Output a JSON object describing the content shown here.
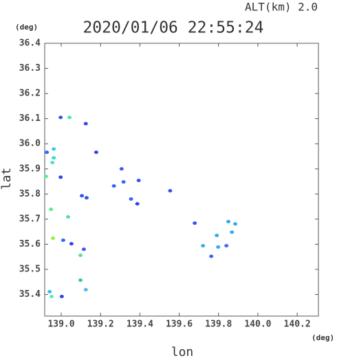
{
  "chart_data": {
    "type": "scatter",
    "title": "2020/01/06 22:55:24",
    "annotation": "ALT(km) 2.0",
    "y_unit": "(deg)",
    "x_unit": "(deg)",
    "x_label": "lon",
    "y_label": "lat",
    "xlim": [
      138.916,
      140.308
    ],
    "ylim": [
      35.314,
      36.4
    ],
    "xticks": [
      {
        "value": 139.0,
        "label": "139.0"
      },
      139.2,
      139.4,
      139.6,
      139.8,
      {
        "value": 140.0,
        "label": "140.0"
      },
      140.2
    ],
    "yticks": [
      36.4,
      36.3,
      36.2,
      36.1,
      {
        "value": 36.0,
        "label": "36.0"
      },
      35.9,
      35.8,
      35.7,
      35.6,
      35.5,
      35.4
    ],
    "x": [
      138.997,
      139.042,
      139.125,
      138.927,
      138.962,
      138.962,
      138.955,
      138.997,
      138.923,
      138.948,
      139.035,
      138.958,
      139.01,
      139.052,
      139.115,
      139.098,
      139.098,
      139.125,
      138.941,
      138.951,
      139.003,
      139.178,
      139.307,
      139.317,
      139.394,
      139.268,
      139.105,
      139.129,
      139.355,
      139.554,
      139.387,
      139.679,
      139.791,
      139.85,
      139.885,
      139.798,
      139.84,
      139.763,
      139.868,
      139.721
    ],
    "values": [
      36.105,
      36.105,
      36.08,
      35.966,
      35.979,
      35.944,
      35.925,
      35.867,
      35.87,
      35.739,
      35.709,
      35.624,
      35.616,
      35.602,
      35.58,
      35.556,
      35.457,
      35.419,
      35.411,
      35.392,
      35.392,
      35.966,
      35.9,
      35.848,
      35.854,
      35.832,
      35.793,
      35.785,
      35.78,
      35.813,
      35.761,
      35.684,
      35.635,
      35.69,
      35.681,
      35.589,
      35.594,
      35.552,
      35.648,
      35.594
    ],
    "colors": [
      "#3355ee",
      "#44ee99",
      "#3344ee",
      "#3366ff",
      "#33ccee",
      "#33ddcc",
      "#55ddcc",
      "#3344ee",
      "#55ee99",
      "#55ee88",
      "#55ddaa",
      "#99ee44",
      "#3366ff",
      "#3344ee",
      "#4455ff",
      "#55ddaa",
      "#33cc99",
      "#55bbdd",
      "#33bbee",
      "#55eecc",
      "#3344ee",
      "#3344ee",
      "#4455ff",
      "#3366ff",
      "#3355ee",
      "#3366ff",
      "#3355ee",
      "#3355ee",
      "#3366ff",
      "#3355ee",
      "#3344ee",
      "#3355ee",
      "#33aaee",
      "#33aaee",
      "#33aaee",
      "#33aaee",
      "#4466ff",
      "#3366ff",
      "#33aaee",
      "#33aaee"
    ]
  }
}
